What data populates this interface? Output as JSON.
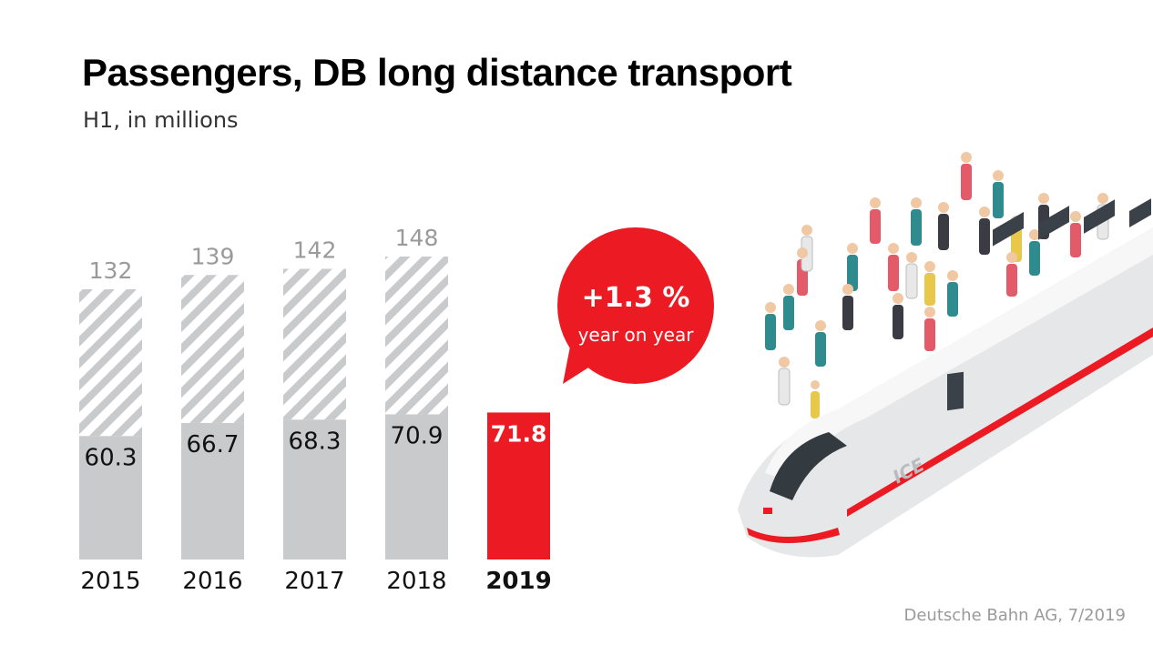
{
  "title": "Passengers, DB long distance transport",
  "subtitle": "H1, in millions",
  "source": "Deutsche Bahn AG, 7/2019",
  "badge": {
    "value": "+1.3 %",
    "text": "year on year"
  },
  "train_label": "ICE",
  "colors": {
    "bar_grey": "#c8cacb",
    "hatch_grey": "#c8cacb",
    "highlight_red": "#ec1b23",
    "total_label_grey": "#9a9a9a"
  },
  "chart_data": {
    "type": "bar",
    "categories": [
      "2015",
      "2016",
      "2017",
      "2018",
      "2019"
    ],
    "series": [
      {
        "values": [
          60.3,
          66.7,
          68.3,
          70.9,
          71.8
        ]
      },
      {
        "values": [
          132,
          139,
          142,
          148,
          null
        ]
      }
    ],
    "highlight_category": "2019",
    "ylim": [
      0,
      150
    ]
  }
}
